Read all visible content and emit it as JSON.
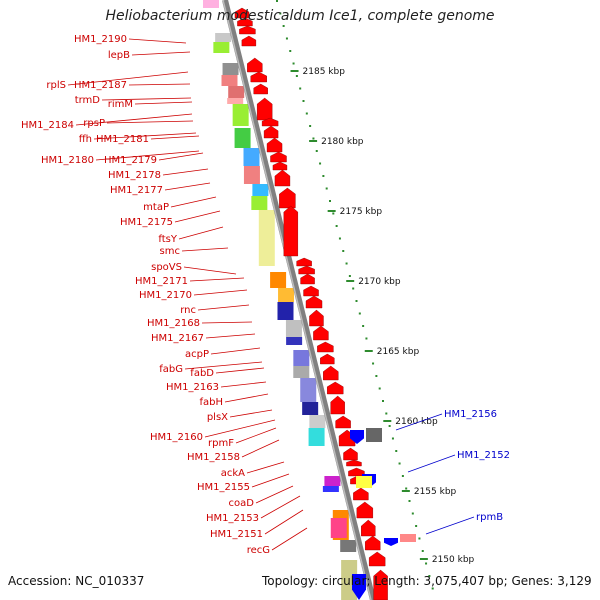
{
  "title": "Heliobacterium modesticaldum Ice1, complete genome",
  "footer": {
    "accession": "Accession: NC_010337",
    "topology": "Topology: circular; Length: 3,075,407 bp; Genes: 3,129"
  },
  "colors": {
    "forward_label": "#cc0000",
    "reverse_label": "#0000cc",
    "ruler": "#2e8b2e",
    "backbone": "#808080"
  },
  "kbp_ticks": [
    "2185 kbp",
    "2180 kbp",
    "2175 kbp",
    "2170 kbp",
    "2165 kbp",
    "2160 kbp",
    "2155 kbp",
    "2150 kbp"
  ],
  "forward_genes": [
    "HM1_2190",
    "lepB",
    "rplS",
    "HM1_2187",
    "trmD",
    "rimM",
    "HM1_2184",
    "rpsP",
    "ffh",
    "HM1_2181",
    "HM1_2180",
    "HM1_2179",
    "HM1_2178",
    "HM1_2177",
    "mtaP",
    "HM1_2175",
    "ftsY",
    "smc",
    "spoVS",
    "HM1_2171",
    "HM1_2170",
    "rnc",
    "HM1_2168",
    "HM1_2167",
    "acpP",
    "fabG",
    "fabD",
    "HM1_2163",
    "fabH",
    "plsX",
    "HM1_2160",
    "rpmF",
    "HM1_2158",
    "ackA",
    "HM1_2155",
    "coaD",
    "HM1_2153",
    "HM1_2151",
    "recG"
  ],
  "reverse_genes": [
    "HM1_2156",
    "HM1_2152",
    "rpmB"
  ]
}
